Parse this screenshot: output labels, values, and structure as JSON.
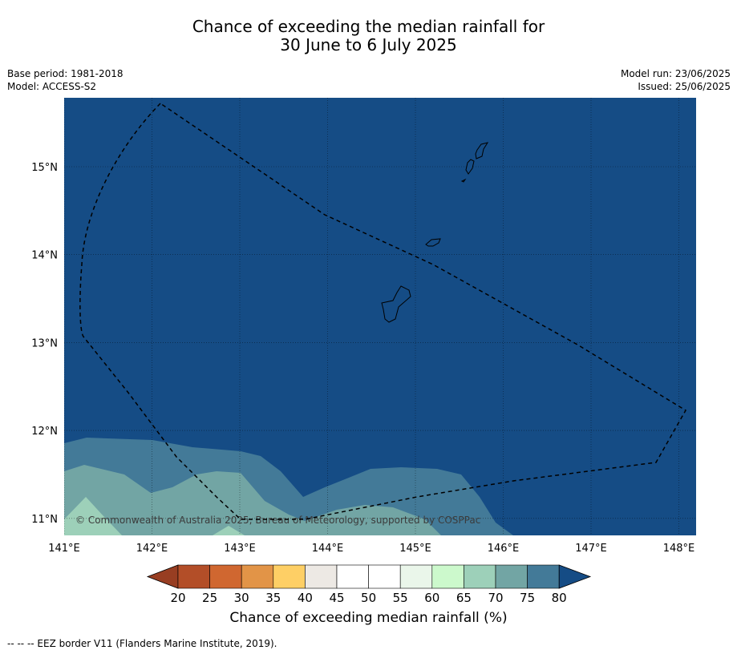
{
  "title_line1": "Chance of exceeding the median rainfall for",
  "title_line2": "30 June to 6 July 2025",
  "meta_left": [
    "Base period: 1981-2018",
    "Model: ACCESS-S2"
  ],
  "meta_right": [
    "Model run: 23/06/2025",
    "Issued: 25/06/2025"
  ],
  "map": {
    "lon_ticks": [
      "141°E",
      "142°E",
      "143°E",
      "144°E",
      "145°E",
      "146°E",
      "147°E",
      "148°E"
    ],
    "lat_ticks": [
      "15°N",
      "14°N",
      "13°N",
      "12°N",
      "11°N"
    ],
    "copyright": "© Commonwealth of Australia 2025, Bureau of Meteorology, supported by COSPPac",
    "colors": {
      "ocean_dominant": "#154c85",
      "band_75_80": "#437a98",
      "band_70_75": "#72a5a4",
      "band_65_70": "#9dd0b9"
    }
  },
  "colorbar": {
    "ticks": [
      "20",
      "25",
      "30",
      "35",
      "40",
      "45",
      "50",
      "55",
      "60",
      "65",
      "70",
      "75",
      "80"
    ],
    "colors": [
      "#b34e28",
      "#d06730",
      "#e29447",
      "#fecf65",
      "#ede9e4",
      "#ffffff",
      "#ffffff",
      "#eaf6ea",
      "#ccf9cc",
      "#9dd0b9",
      "#72a5a4",
      "#437a98"
    ],
    "under_color": "#983e22",
    "over_color": "#154c85",
    "label": "Chance of exceeding median rainfall (%)"
  },
  "footnote": "--  --  -- EEZ border V11 (Flanders Marine Institute, 2019)."
}
